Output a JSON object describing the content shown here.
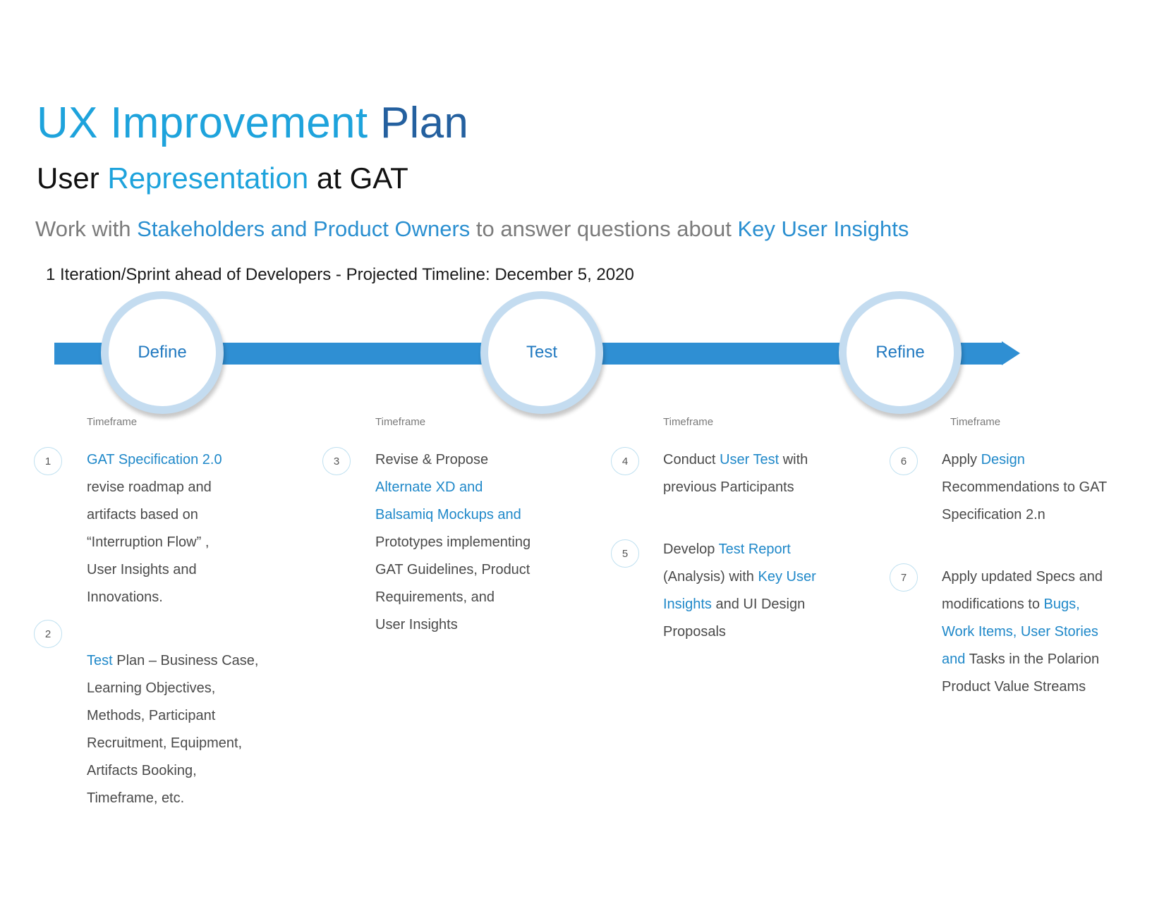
{
  "header": {
    "title_part1": "UX Improvement",
    "title_part2": "Plan",
    "subtitle_part1": "User",
    "subtitle_part2": "Representation",
    "subtitle_part3": "at GAT",
    "tagline_part1": "Work with",
    "tagline_part2": "Stakeholders and Product Owners",
    "tagline_part3": "to answer questions about",
    "tagline_part4": "Key User Insights",
    "timeline_note": "1 Iteration/Sprint ahead of Developers - Projected Timeline: December 5, 2020"
  },
  "phases": [
    {
      "label": "Define"
    },
    {
      "label": "Test"
    },
    {
      "label": "Refine"
    }
  ],
  "timeframe_label": "Timeframe",
  "steps": [
    {
      "number": "1",
      "l1_hl": "GAT Specification 2.0",
      "l2": "revise roadmap and",
      "l3": "artifacts based on",
      "l4": "“Interruption Flow” ,",
      "l5": "User Insights and",
      "l6": "Innovations."
    },
    {
      "number": "2",
      "l1_hl": "Test",
      "l1_rest": " Plan – Business Case,",
      "l2": "Learning Objectives,",
      "l3": "Methods, Participant",
      "l4": "Recruitment, Equipment,",
      "l5": "Artifacts Booking,",
      "l6": "Timeframe, etc."
    },
    {
      "number": "3",
      "l1": "Revise & Propose",
      "l2_hl": "Alternate XD and",
      "l3_hl": "Balsamiq Mockups and",
      "l4": "Prototypes implementing",
      "l5": "GAT Guidelines, Product",
      "l6": "Requirements, and",
      "l7": "User Insights"
    },
    {
      "number": "4",
      "l1_pre": "Conduct ",
      "l1_hl": "User Test",
      "l1_post": " with",
      "l2": "previous Participants"
    },
    {
      "number": "5",
      "l1_pre": "Develop ",
      "l1_hl": "Test Report",
      "l2_pre": "(Analysis) with ",
      "l2_hl": "Key User",
      "l3_hl": "Insights",
      "l3_post": " and UI Design",
      "l4": "Proposals"
    },
    {
      "number": "6",
      "l1_pre": "Apply ",
      "l1_hl": "Design",
      "l2": "Recommendations to GAT",
      "l3": "Specification 2.n"
    },
    {
      "number": "7",
      "l1": "Apply updated Specs and",
      "l2_pre": "modifications to ",
      "l2_hl": "Bugs,",
      "l3_hl": "Work Items, User Stories",
      "l4_hl": "and",
      "l4_post": " Tasks in the Polarion",
      "l5": "Product Value Streams"
    }
  ],
  "colors": {
    "accent": "#1ea3dc",
    "navy": "#24609f",
    "bar": "#2f8fd3",
    "ring": "#c4dcf0"
  }
}
